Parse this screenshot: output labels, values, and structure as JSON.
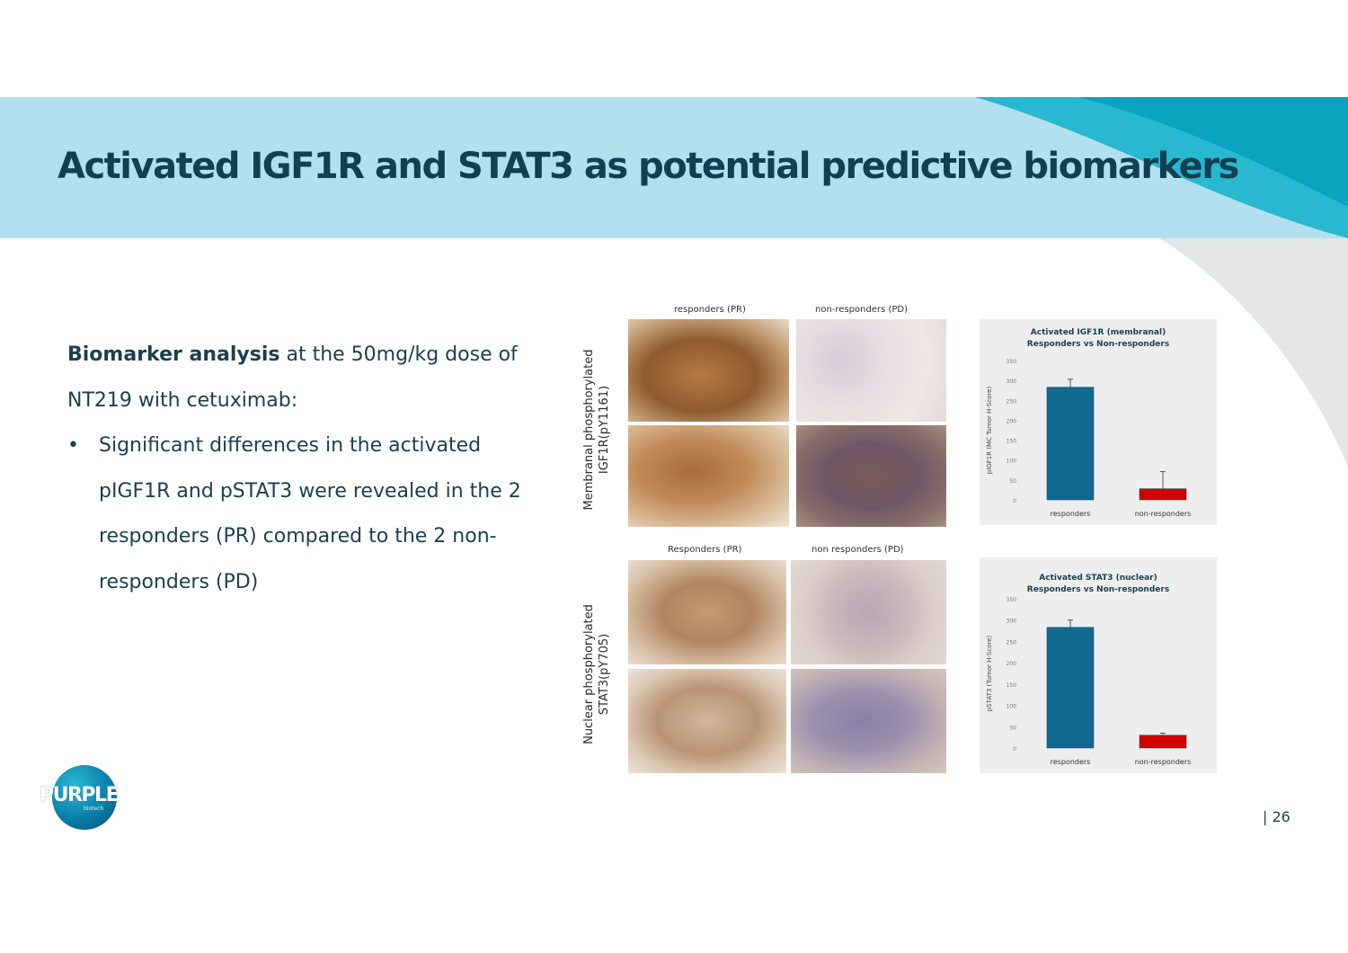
{
  "slide": {
    "title": "Activated IGF1R and STAT3 as potential predictive biomarkers",
    "page_number": "| 26",
    "colors": {
      "banner": "#b3e0ef",
      "swoosh": "#0fb0c9",
      "title": "#123f52",
      "bar_responders": "#106a8f",
      "bar_non_responders": "#d40000"
    }
  },
  "body": {
    "intro_bold": "Biomarker analysis",
    "intro_rest": " at the 50mg/kg dose of NT219 with cetuximab:",
    "bullet_symbol": "•",
    "bullet_text": "Significant differences in the activated pIGF1R and pSTAT3 were revealed in the 2 responders (PR) compared to the 2 non-responders (PD)"
  },
  "images": {
    "top_row_label_line1": "Membranal phosphorylated",
    "top_row_label_line2": "IGF1R(pY1161)",
    "top_col_left": "responders (PR)",
    "top_col_right": "non-responders (PD)",
    "bottom_row_label_line1": "Nuclear phosphorylated",
    "bottom_row_label_line2": "STAT3(pY705)",
    "bottom_col_left": "Responders (PR)",
    "bottom_col_right": "non responders (PD)"
  },
  "logo": {
    "text": "PURPLE",
    "sub": "biotech"
  },
  "chart_data": [
    {
      "type": "bar",
      "title": "Activated IGF1R (membranal)",
      "subtitle": "Responders vs Non-responders",
      "ylabel": "pIGF1R (MC Tumor H-Score)",
      "categories": [
        "responders",
        "non-responders"
      ],
      "values": [
        283,
        28
      ],
      "errors": [
        20,
        43
      ],
      "ylim": [
        0,
        350
      ],
      "yticks": [
        0,
        50,
        100,
        150,
        200,
        250,
        300,
        350
      ],
      "colors": [
        "#106a8f",
        "#d40000"
      ]
    },
    {
      "type": "bar",
      "title": "Activated STAT3 (nuclear)",
      "subtitle": "Responders vs Non-responders",
      "ylabel": "pSTAT3 (Tumor H-Score)",
      "categories": [
        "responders",
        "non-responders"
      ],
      "values": [
        283,
        30
      ],
      "errors": [
        17,
        5
      ],
      "ylim": [
        0,
        350
      ],
      "yticks": [
        0,
        50,
        100,
        150,
        200,
        250,
        300,
        350
      ],
      "colors": [
        "#106a8f",
        "#d40000"
      ]
    }
  ]
}
